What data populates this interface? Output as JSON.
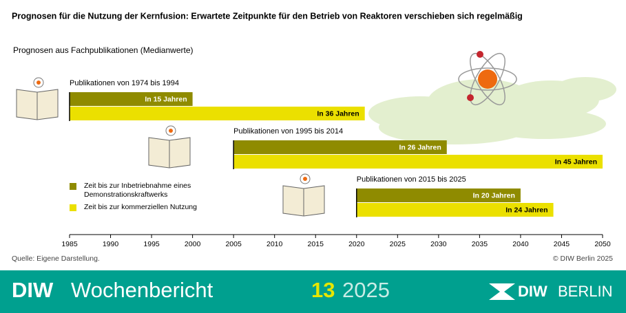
{
  "chart_data": {
    "type": "bar",
    "title": "Prognosen für die Nutzung der Kernfusion: Erwartete Zeitpunkte für den Betrieb von Reaktoren verschieben sich regelmäßig",
    "subtitle": "Prognosen aus Fachpublikationen (Medianwerte)",
    "categories": [
      "Publikationen von 1974 bis 1994",
      "Publikationen von 1995 bis 2014",
      "Publikationen von 2015 bis 2025"
    ],
    "starts": [
      1985,
      2005,
      2020
    ],
    "series": [
      {
        "name": "Zeit bis zur Inbetriebnahme eines Demonstrationskraftwerks",
        "color": "#8f8b00",
        "label_color": "#ffffff",
        "values": [
          15,
          26,
          20
        ],
        "value_labels": [
          "In 15 Jahren",
          "In 26 Jahren",
          "In 20 Jahren"
        ]
      },
      {
        "name": "Zeit bis zur kommerziellen Nutzung",
        "color": "#ebe000",
        "label_color": "#000000",
        "values": [
          36,
          45,
          24
        ],
        "value_labels": [
          "In 36 Jahren",
          "In 45 Jahren",
          "In 24 Jahren"
        ]
      }
    ],
    "xlim": [
      1985,
      2050
    ],
    "xticks": [
      1985,
      1990,
      1995,
      2000,
      2005,
      2010,
      2015,
      2020,
      2025,
      2030,
      2035,
      2040,
      2045,
      2050
    ],
    "source": "Quelle: Eigene Darstellung.",
    "copyright": "© DIW Berlin 2025"
  },
  "footer": {
    "brand_bold": "DIW",
    "brand": "Wochenbericht",
    "issue": "13",
    "year": "2025",
    "logo_bold": "DIW",
    "logo": "BERLIN"
  }
}
